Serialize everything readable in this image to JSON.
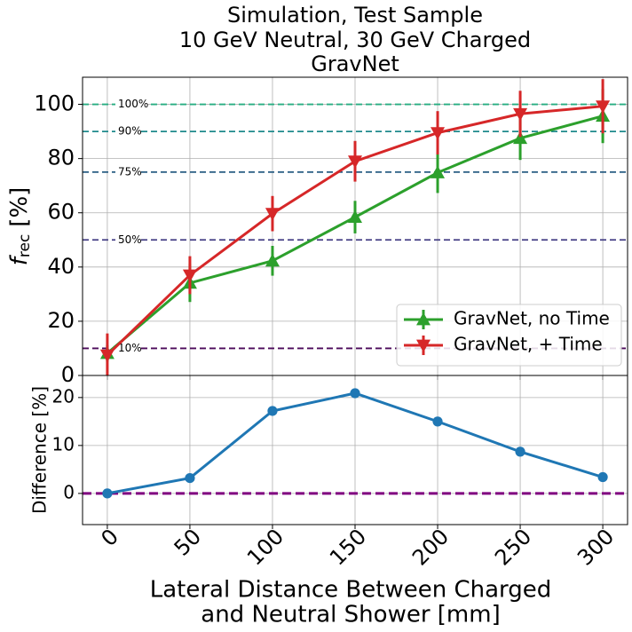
{
  "chart_data": [
    {
      "type": "line",
      "title": [
        "Simulation, Test Sample",
        "10 GeV Neutral, 30 GeV Charged",
        "GravNet"
      ],
      "ylabel": "f",
      "ylabel_sub": "rec",
      "ylabel_unit": "[%]",
      "x": [
        0,
        50,
        100,
        150,
        200,
        250,
        300
      ],
      "xlim": [
        -15,
        315
      ],
      "xticks": [
        0,
        50,
        100,
        150,
        200,
        250,
        300
      ],
      "ylim": [
        0,
        110
      ],
      "yticks": [
        0,
        20,
        40,
        60,
        80,
        100
      ],
      "grid": true,
      "legend": "lower right",
      "series": [
        {
          "name": "GravNet, no Time",
          "color": "#2ca02c",
          "marker": "triangle-up",
          "values": [
            8.2,
            34.1,
            42.3,
            58.4,
            74.8,
            87.5,
            95.7
          ],
          "errors": [
            3,
            7,
            5.5,
            6,
            7.5,
            8,
            10
          ]
        },
        {
          "name": "GravNet, + Time",
          "color": "#d62728",
          "marker": "triangle-down",
          "values": [
            7.5,
            37,
            59.7,
            79,
            89.5,
            96.5,
            99.3
          ],
          "errors": [
            8,
            7,
            6.5,
            7.5,
            8,
            8.5,
            10
          ]
        }
      ],
      "hlines": [
        {
          "value": 100,
          "label": "100%",
          "color": "#27ad81"
        },
        {
          "value": 90,
          "label": "90%",
          "color": "#1f8a8c"
        },
        {
          "value": 75,
          "label": "75%",
          "color": "#2a5f84"
        },
        {
          "value": 50,
          "label": "50%",
          "color": "#433f84"
        },
        {
          "value": 10,
          "label": "10%",
          "color": "#4b0a5a"
        }
      ]
    },
    {
      "type": "line",
      "ylabel": "Difference [%]",
      "xlabel": [
        "Lateral Distance Between Charged",
        "and Neutral Shower [mm]"
      ],
      "x": [
        0,
        50,
        100,
        150,
        200,
        250,
        300
      ],
      "xlim": [
        -15,
        315
      ],
      "xticks": [
        0,
        50,
        100,
        150,
        200,
        250,
        300
      ],
      "ylim": [
        -6.5,
        24.6
      ],
      "yticks": [
        0,
        10,
        20
      ],
      "grid": true,
      "series": [
        {
          "color": "#1f77b4",
          "marker": "circle",
          "values": [
            0,
            3.2,
            17.2,
            20.9,
            15,
            8.7,
            3.4
          ]
        }
      ],
      "hlines": [
        {
          "value": 0,
          "color": "#800080"
        }
      ]
    }
  ]
}
